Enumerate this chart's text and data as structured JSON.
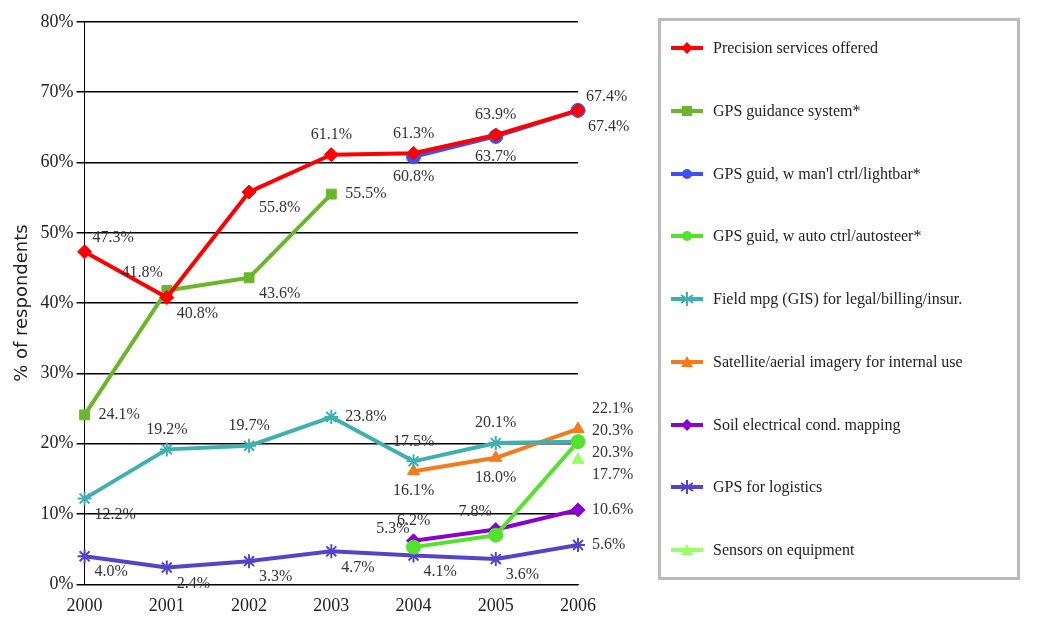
{
  "chart_data": {
    "type": "line",
    "ylabel": "% of respondents",
    "categories": [
      "2000",
      "2001",
      "2002",
      "2003",
      "2004",
      "2005",
      "2006"
    ],
    "ylim": [
      0,
      80
    ],
    "yticks": [
      {
        "value": 0,
        "label": "0%"
      },
      {
        "value": 10,
        "label": "10%"
      },
      {
        "value": 20,
        "label": "20%"
      },
      {
        "value": 30,
        "label": "30%"
      },
      {
        "value": 40,
        "label": "40%"
      },
      {
        "value": 50,
        "label": "50%"
      },
      {
        "value": 60,
        "label": "60%"
      },
      {
        "value": 70,
        "label": "70%"
      },
      {
        "value": 80,
        "label": "80%"
      }
    ],
    "grid": "y",
    "legend": "right",
    "line_style": "solid",
    "series": [
      {
        "name": "Precision services offered",
        "color": "#ff0000",
        "marker": "diamond",
        "values": [
          47.3,
          40.8,
          55.8,
          61.1,
          61.3,
          63.9,
          67.4
        ],
        "value_labels": [
          "47.3%",
          "40.8%",
          "55.8%",
          "61.1%",
          "61.3%",
          "63.9%",
          "67.4%"
        ]
      },
      {
        "name": "GPS guidance system*",
        "color": "#6ab82a",
        "marker": "square",
        "values": [
          24.1,
          41.8,
          43.6,
          55.5,
          null,
          null,
          null
        ],
        "value_labels": [
          "24.1%",
          "41.8%",
          "43.6%",
          "55.5%",
          null,
          null,
          null
        ]
      },
      {
        "name": "GPS guid, w man'l ctrl/lightbar*",
        "color": "#3f51f5",
        "marker": "circle",
        "values": [
          null,
          null,
          null,
          null,
          60.8,
          63.7,
          67.4
        ],
        "value_labels": [
          null,
          null,
          null,
          null,
          "60.8%",
          "63.7%",
          "67.4%"
        ]
      },
      {
        "name": "GPS guid, w auto ctrl/autosteer*",
        "color": "#55e22c",
        "marker": "circle",
        "values": [
          null,
          null,
          null,
          null,
          5.3,
          7.0,
          20.3
        ],
        "value_labels": [
          null,
          null,
          null,
          null,
          "5.3%",
          null,
          "20.3%"
        ]
      },
      {
        "name": "Field mpg (GIS) for legal/billing/insur.",
        "color": "#3fb0b0",
        "marker": "cross",
        "values": [
          12.2,
          19.2,
          19.7,
          23.8,
          17.5,
          20.1,
          20.3
        ],
        "value_labels": [
          "12.2%",
          "19.2%",
          "19.7%",
          "23.8%",
          "17.5%",
          "20.1%",
          "20.3%"
        ]
      },
      {
        "name": "Satellite/aerial imagery for internal use",
        "color": "#f57a1a",
        "marker": "triangle",
        "values": [
          null,
          null,
          null,
          null,
          16.1,
          18.0,
          22.1
        ],
        "value_labels": [
          null,
          null,
          null,
          null,
          "16.1%",
          "18.0%",
          "22.1%"
        ]
      },
      {
        "name": "Soil electrical cond. mapping",
        "color": "#8c00d0",
        "marker": "diamond",
        "values": [
          null,
          null,
          null,
          null,
          6.2,
          7.8,
          10.6
        ],
        "value_labels": [
          null,
          null,
          null,
          null,
          "6.2%",
          "7.8%",
          "10.6%"
        ]
      },
      {
        "name": "GPS for logistics",
        "color": "#5544c8",
        "marker": "cross",
        "values": [
          4.0,
          2.4,
          3.3,
          4.7,
          4.1,
          3.6,
          5.6
        ],
        "value_labels": [
          "4.0%",
          "2.4%",
          "3.3%",
          "4.7%",
          "4.1%",
          "3.6%",
          "5.6%"
        ]
      },
      {
        "name": "Sensors on equipment",
        "color": "#99ff66",
        "marker": "triangle",
        "values": [
          null,
          null,
          null,
          null,
          null,
          null,
          17.7
        ],
        "value_labels": [
          null,
          null,
          null,
          null,
          null,
          null,
          "17.7%"
        ]
      }
    ]
  }
}
